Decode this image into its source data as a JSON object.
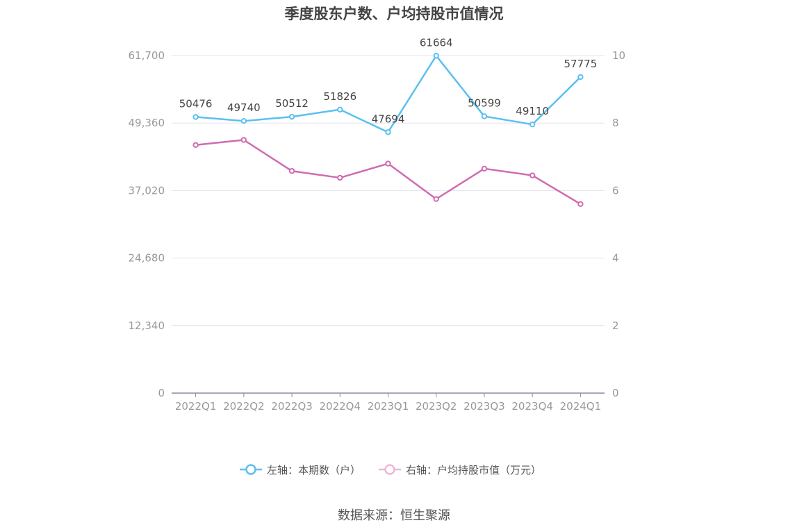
{
  "chart_data": {
    "type": "line",
    "title": "季度股东户数、户均持股市值情况",
    "categories": [
      "2022Q1",
      "2022Q2",
      "2022Q3",
      "2022Q4",
      "2023Q1",
      "2023Q2",
      "2023Q3",
      "2023Q4",
      "2024Q1"
    ],
    "series": [
      {
        "name": "左轴：本期数（户）",
        "axis": "left",
        "color": "#5bc0f0",
        "values": [
          50476,
          49740,
          50512,
          51826,
          47694,
          61664,
          50599,
          49110,
          57775
        ],
        "labels": [
          "50476",
          "49740",
          "50512",
          "51826",
          "47694",
          "61664",
          "50599",
          "49110",
          "57775"
        ]
      },
      {
        "name": "右轴：户均持股市值（万元）",
        "axis": "right",
        "color": "#d06bb0",
        "values": [
          7.35,
          7.5,
          6.58,
          6.38,
          6.8,
          5.75,
          6.65,
          6.45,
          5.6
        ]
      }
    ],
    "left_axis": {
      "min": 0,
      "max": 61700,
      "ticks": [
        0,
        12340,
        24680,
        37020,
        49360,
        61700
      ],
      "tick_labels": [
        "0",
        "12,340",
        "24,680",
        "37,020",
        "49,360",
        "61,700"
      ]
    },
    "right_axis": {
      "min": 0,
      "max": 10,
      "ticks": [
        0,
        2,
        4,
        6,
        8,
        10
      ],
      "tick_labels": [
        "0",
        "2",
        "4",
        "6",
        "8",
        "10"
      ]
    },
    "grid": true,
    "legend": "bottom-center"
  },
  "source": "数据来源：恒生聚源"
}
